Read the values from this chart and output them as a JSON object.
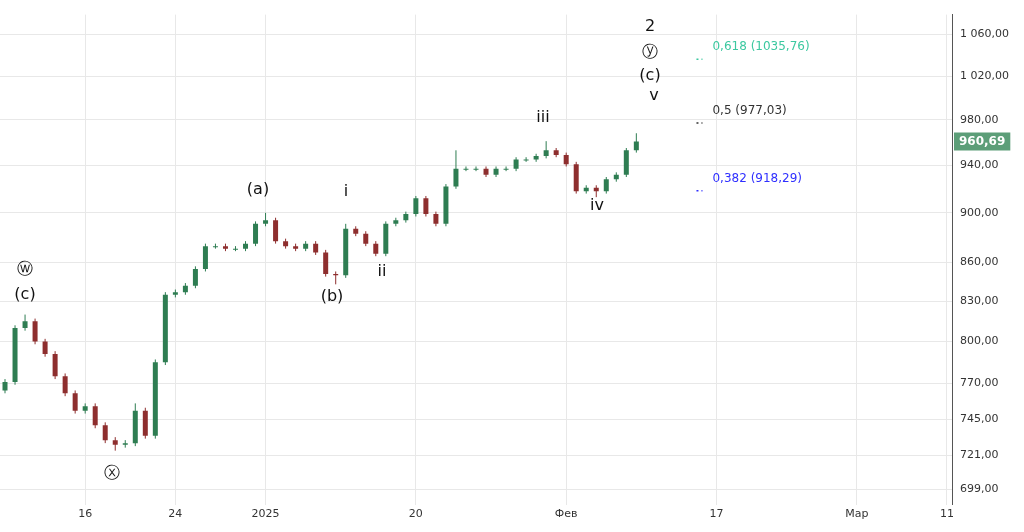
{
  "chart_data": {
    "type": "candlestick",
    "categories": [
      null,
      null,
      null,
      null,
      null,
      null,
      null,
      null,
      "16",
      null,
      null,
      null,
      null,
      null,
      null,
      null,
      null,
      "24",
      null,
      null,
      null,
      null,
      null,
      null,
      null,
      null,
      "2025",
      null,
      null,
      null,
      null,
      null,
      null,
      null,
      null,
      null,
      null,
      null,
      null,
      null,
      null,
      "20",
      null,
      null,
      null,
      null,
      null,
      null,
      null,
      null,
      null,
      null,
      null,
      null,
      null,
      null,
      "Фев",
      null,
      null,
      null,
      null,
      null,
      null,
      null,
      null,
      null,
      null,
      null,
      null,
      null,
      null,
      "17",
      null,
      null,
      null,
      null,
      null,
      null,
      null,
      null,
      null,
      null,
      null,
      null,
      null,
      "Мар",
      null,
      null,
      null,
      null,
      null,
      null,
      null,
      null,
      "11"
    ],
    "ohlc": [
      [
        765,
        773,
        763,
        771
      ],
      [
        771,
        812,
        769,
        810
      ],
      [
        810,
        820,
        808,
        815
      ],
      [
        815,
        817,
        798,
        800
      ],
      [
        800,
        802,
        789,
        791
      ],
      [
        791,
        793,
        773,
        775
      ],
      [
        775,
        777,
        761,
        763
      ],
      [
        763,
        765,
        749,
        751
      ],
      [
        751,
        756,
        749,
        754
      ],
      [
        754,
        756,
        739,
        741
      ],
      [
        741,
        743,
        729,
        731
      ],
      [
        731,
        733,
        724,
        728
      ],
      [
        728,
        731,
        726,
        729
      ],
      [
        729,
        756,
        727,
        751
      ],
      [
        751,
        753,
        732,
        734
      ],
      [
        734,
        787,
        732,
        785
      ],
      [
        785,
        837,
        783,
        835
      ],
      [
        835,
        839,
        833,
        837
      ],
      [
        837,
        844,
        835,
        842
      ],
      [
        842,
        857,
        840,
        855
      ],
      [
        855,
        875,
        853,
        873
      ],
      [
        873,
        875,
        871,
        873
      ],
      [
        873,
        875,
        869,
        871
      ],
      [
        871,
        873,
        869,
        871
      ],
      [
        871,
        877,
        869,
        875
      ],
      [
        875,
        893,
        873,
        891
      ],
      [
        891,
        900,
        889,
        894
      ],
      [
        894,
        896,
        875,
        877
      ],
      [
        877,
        879,
        871,
        873
      ],
      [
        873,
        875,
        869,
        871
      ],
      [
        871,
        877,
        869,
        875
      ],
      [
        875,
        877,
        866,
        868
      ],
      [
        868,
        870,
        849,
        851
      ],
      [
        851,
        853,
        843,
        850
      ],
      [
        850,
        891,
        848,
        887
      ],
      [
        887,
        889,
        881,
        883
      ],
      [
        883,
        885,
        873,
        875
      ],
      [
        875,
        877,
        865,
        867
      ],
      [
        867,
        893,
        865,
        891
      ],
      [
        891,
        896,
        889,
        894
      ],
      [
        894,
        901,
        892,
        899
      ],
      [
        899,
        914,
        897,
        912
      ],
      [
        912,
        914,
        897,
        899
      ],
      [
        899,
        901,
        889,
        891
      ],
      [
        891,
        924,
        889,
        922
      ],
      [
        922,
        953,
        920,
        937
      ],
      [
        937,
        939,
        935,
        937
      ],
      [
        937,
        939,
        935,
        937
      ],
      [
        937,
        939,
        930,
        932
      ],
      [
        932,
        939,
        930,
        937
      ],
      [
        937,
        939,
        935,
        937
      ],
      [
        937,
        947,
        935,
        945
      ],
      [
        945,
        947,
        943,
        945
      ],
      [
        945,
        950,
        943,
        948
      ],
      [
        948,
        961,
        946,
        953
      ],
      [
        953,
        955,
        947,
        949
      ],
      [
        949,
        951,
        939,
        941
      ],
      [
        941,
        943,
        916,
        918
      ],
      [
        918,
        923,
        916,
        921
      ],
      [
        921,
        923,
        913,
        918
      ],
      [
        918,
        930,
        916,
        928
      ],
      [
        928,
        934,
        926,
        932
      ],
      [
        932,
        955,
        930,
        953
      ],
      [
        953,
        968,
        951,
        960.69
      ],
      null,
      null,
      null,
      null,
      null,
      null,
      null,
      null,
      null,
      null,
      null,
      null,
      null,
      null,
      null,
      null,
      null,
      null,
      null,
      null,
      null,
      null,
      null,
      null,
      null,
      null,
      null,
      null,
      null,
      null,
      null
    ],
    "log": "y",
    "grid": true,
    "legend": false,
    "ylim": [
      689,
      1079
    ],
    "yticks": [
      {
        "value": 699,
        "label": "699,00"
      },
      {
        "value": 721,
        "label": "721,00"
      },
      {
        "value": 745,
        "label": "745,00"
      },
      {
        "value": 770,
        "label": "770,00"
      },
      {
        "value": 800,
        "label": "800,00"
      },
      {
        "value": 830,
        "label": "830,00"
      },
      {
        "value": 860,
        "label": "860,00"
      },
      {
        "value": 900,
        "label": "900,00"
      },
      {
        "value": 940,
        "label": "940,00"
      },
      {
        "value": 980,
        "label": "980,00"
      },
      {
        "value": 1020,
        "label": "1 020,00"
      },
      {
        "value": 1060,
        "label": "1 060,00"
      }
    ],
    "ref_lines": [
      {
        "axis": "y",
        "value": 1035.76,
        "label": "0,618 (1035,76)",
        "color": "#3cc8a0",
        "line_style": "dotted"
      },
      {
        "axis": "y",
        "value": 977.03,
        "label": "0,5 (977,03)",
        "color": "#333333",
        "line_style": "dotted"
      },
      {
        "axis": "y",
        "value": 918.29,
        "label": "0,382 (918,29)",
        "color": "#2f2fff",
        "line_style": "dotted"
      }
    ],
    "annotations": [
      "ⓦ",
      "(c)",
      "ⓧ",
      "(a)",
      "i",
      "(b)",
      "ii",
      "iii",
      "iv",
      "2",
      "ⓨ",
      "(c)",
      "v",
      "960,69"
    ]
  }
}
